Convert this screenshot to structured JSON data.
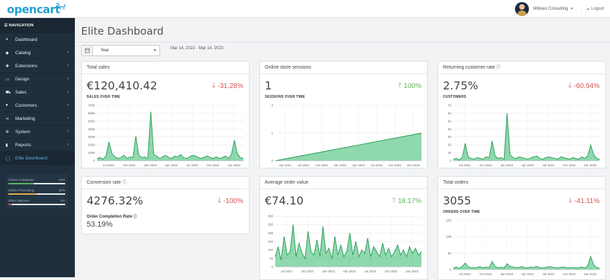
{
  "header": {
    "logo_text": "opencart",
    "user_name": "Willows Consulting",
    "logout_label": "Logout"
  },
  "sidebar": {
    "heading": "NAVIGATION",
    "items": [
      {
        "label": "Dashboard",
        "icon": "dashboard-icon",
        "arrow": false
      },
      {
        "label": "Catalog",
        "icon": "tag-icon",
        "arrow": true
      },
      {
        "label": "Extensions",
        "icon": "puzzle-icon",
        "arrow": true
      },
      {
        "label": "Design",
        "icon": "monitor-icon",
        "arrow": true
      },
      {
        "label": "Sales",
        "icon": "cart-icon",
        "arrow": true
      },
      {
        "label": "Customers",
        "icon": "user-icon",
        "arrow": true
      },
      {
        "label": "Marketing",
        "icon": "share-icon",
        "arrow": true
      },
      {
        "label": "System",
        "icon": "gear-icon",
        "arrow": true
      },
      {
        "label": "Reports",
        "icon": "bar-chart-icon",
        "arrow": true
      },
      {
        "label": "Elite Dashboard",
        "icon": "circle-icon",
        "arrow": false
      }
    ],
    "stats": [
      {
        "label": "Orders Completed",
        "value": "45%",
        "fraction": 0.45,
        "color": "#5cb85c"
      },
      {
        "label": "Orders Processing",
        "value": "50%",
        "fraction": 0.5,
        "color": "#f0ad4e"
      },
      {
        "label": "Other Statuses",
        "value": "6%",
        "fraction": 0.06,
        "color": "#d9534f"
      }
    ]
  },
  "main": {
    "title": "Elite Dashboard",
    "filter_value": "Year",
    "date_range": "Mar 14, 2022 - Mar 14, 2023",
    "cards": {
      "total_sales": {
        "title": "Total sales",
        "value": "€120,410.42",
        "delta": "-31.28%",
        "sub": "SALES OVER TIME"
      },
      "online_sessions": {
        "title": "Online store sessions",
        "value": "1",
        "delta": "100%",
        "sub": "SESSIONS OVER TIME"
      },
      "returning_customers": {
        "title": "Returning customer rate",
        "value": "2.75%",
        "delta": "-60.94%",
        "sub": "CUSTOMERS"
      },
      "conversion": {
        "title": "Conversion rate",
        "value": "4276.32%",
        "delta": "-100%",
        "sub": "Order Completion Rate",
        "sub_value": "53.19%"
      },
      "aov": {
        "title": "Average order value",
        "value": "€74.10",
        "delta": "18.17%"
      },
      "total_orders": {
        "title": "Total orders",
        "value": "3055",
        "delta": "-41.11%",
        "sub": "ORDERS OVER TIME"
      }
    }
  },
  "chart_data": [
    {
      "type": "area",
      "title": "SALES OVER TIME",
      "x_ticks": [
        "Jul 2021",
        "Oct 2021",
        "Jan 2022",
        "Apr 2022",
        "Jul 2022",
        "Oct 2022",
        "Jan 2023"
      ],
      "y_ticks": [
        0,
        1000,
        2000,
        3000,
        4000,
        5000,
        6000,
        7000
      ],
      "ylim": [
        0,
        7000
      ],
      "series": [
        {
          "values": [
            300,
            400,
            200,
            600,
            2400,
            900,
            500,
            300,
            400,
            700,
            300,
            500,
            400,
            3100,
            700,
            400,
            500,
            300,
            6200,
            800,
            600,
            300,
            500,
            700,
            400,
            300,
            600,
            500,
            800,
            400,
            300,
            500,
            700,
            600,
            400,
            300,
            500,
            600,
            400,
            300,
            500,
            300,
            400,
            600,
            300,
            800,
            2600,
            900,
            400,
            300
          ]
        }
      ]
    },
    {
      "type": "area",
      "title": "SESSIONS OVER TIME",
      "x_ticks": [
        "Apr 2021",
        "Jul 2021",
        "Oct 2021",
        "Jan 2022",
        "Apr 2022",
        "Jul 2022",
        "Oct 2022",
        "Jan 2023"
      ],
      "y_ticks": [
        0,
        1,
        2
      ],
      "ylim": [
        0,
        2
      ],
      "series": [
        {
          "values": [
            0,
            1
          ]
        }
      ]
    },
    {
      "type": "area",
      "title": "CUSTOMERS",
      "x_ticks": [
        "Jul 2021",
        "Oct 2021",
        "Jan 2022",
        "Apr 2022",
        "Jul 2022",
        "Oct 2022",
        "Jan 2023"
      ],
      "y_ticks": [
        0,
        10,
        20,
        30,
        40,
        50,
        60,
        70
      ],
      "ylim": [
        0,
        70
      ],
      "series": [
        {
          "values": [
            2,
            3,
            1,
            4,
            22,
            5,
            3,
            2,
            4,
            3,
            2,
            5,
            4,
            25,
            6,
            3,
            4,
            2,
            60,
            8,
            4,
            3,
            5,
            4,
            3,
            2,
            4,
            5,
            6,
            3,
            2,
            4,
            5,
            4,
            3,
            2,
            5,
            4,
            3,
            2,
            4,
            3,
            2,
            5,
            3,
            6,
            20,
            8,
            3,
            2
          ]
        }
      ]
    },
    {
      "type": "area",
      "title": "Average order value",
      "x_ticks": [
        "Jul 2021",
        "Oct 2021",
        "Jan 2022",
        "Apr 2022",
        "Jul 2022",
        "Oct 2022",
        "Jan 2023"
      ],
      "y_ticks": [
        0,
        50,
        100,
        150,
        200,
        250,
        300
      ],
      "ylim": [
        0,
        300
      ],
      "series": [
        {
          "values": [
            60,
            120,
            40,
            180,
            70,
            90,
            250,
            60,
            140,
            80,
            50,
            210,
            90,
            70,
            160,
            60,
            240,
            80,
            110,
            50,
            180,
            70,
            130,
            60,
            90,
            200,
            70,
            150,
            60,
            100,
            80,
            170,
            60,
            120,
            90,
            60,
            140,
            70,
            110,
            60,
            90,
            130,
            70,
            100,
            60,
            120,
            80,
            110,
            70,
            90
          ]
        }
      ]
    },
    {
      "type": "area",
      "title": "ORDERS OVER TIME",
      "x_ticks": [
        "Jul 2021",
        "Oct 2021",
        "Jan 2022",
        "Apr 2022",
        "Jul 2022",
        "Oct 2022",
        "Jan 2023"
      ],
      "y_ticks": [
        0,
        50,
        100,
        150
      ],
      "ylim": [
        0,
        150
      ],
      "series": [
        {
          "values": [
            5,
            8,
            4,
            10,
            20,
            8,
            6,
            5,
            7,
            9,
            5,
            8,
            6,
            25,
            9,
            6,
            7,
            5,
            18,
            10,
            8,
            6,
            7,
            9,
            6,
            5,
            8,
            7,
            10,
            6,
            5,
            7,
            9,
            8,
            6,
            5,
            7,
            8,
            6,
            5,
            7,
            5,
            6,
            8,
            5,
            12,
            40,
            15,
            6,
            5
          ]
        }
      ]
    }
  ]
}
